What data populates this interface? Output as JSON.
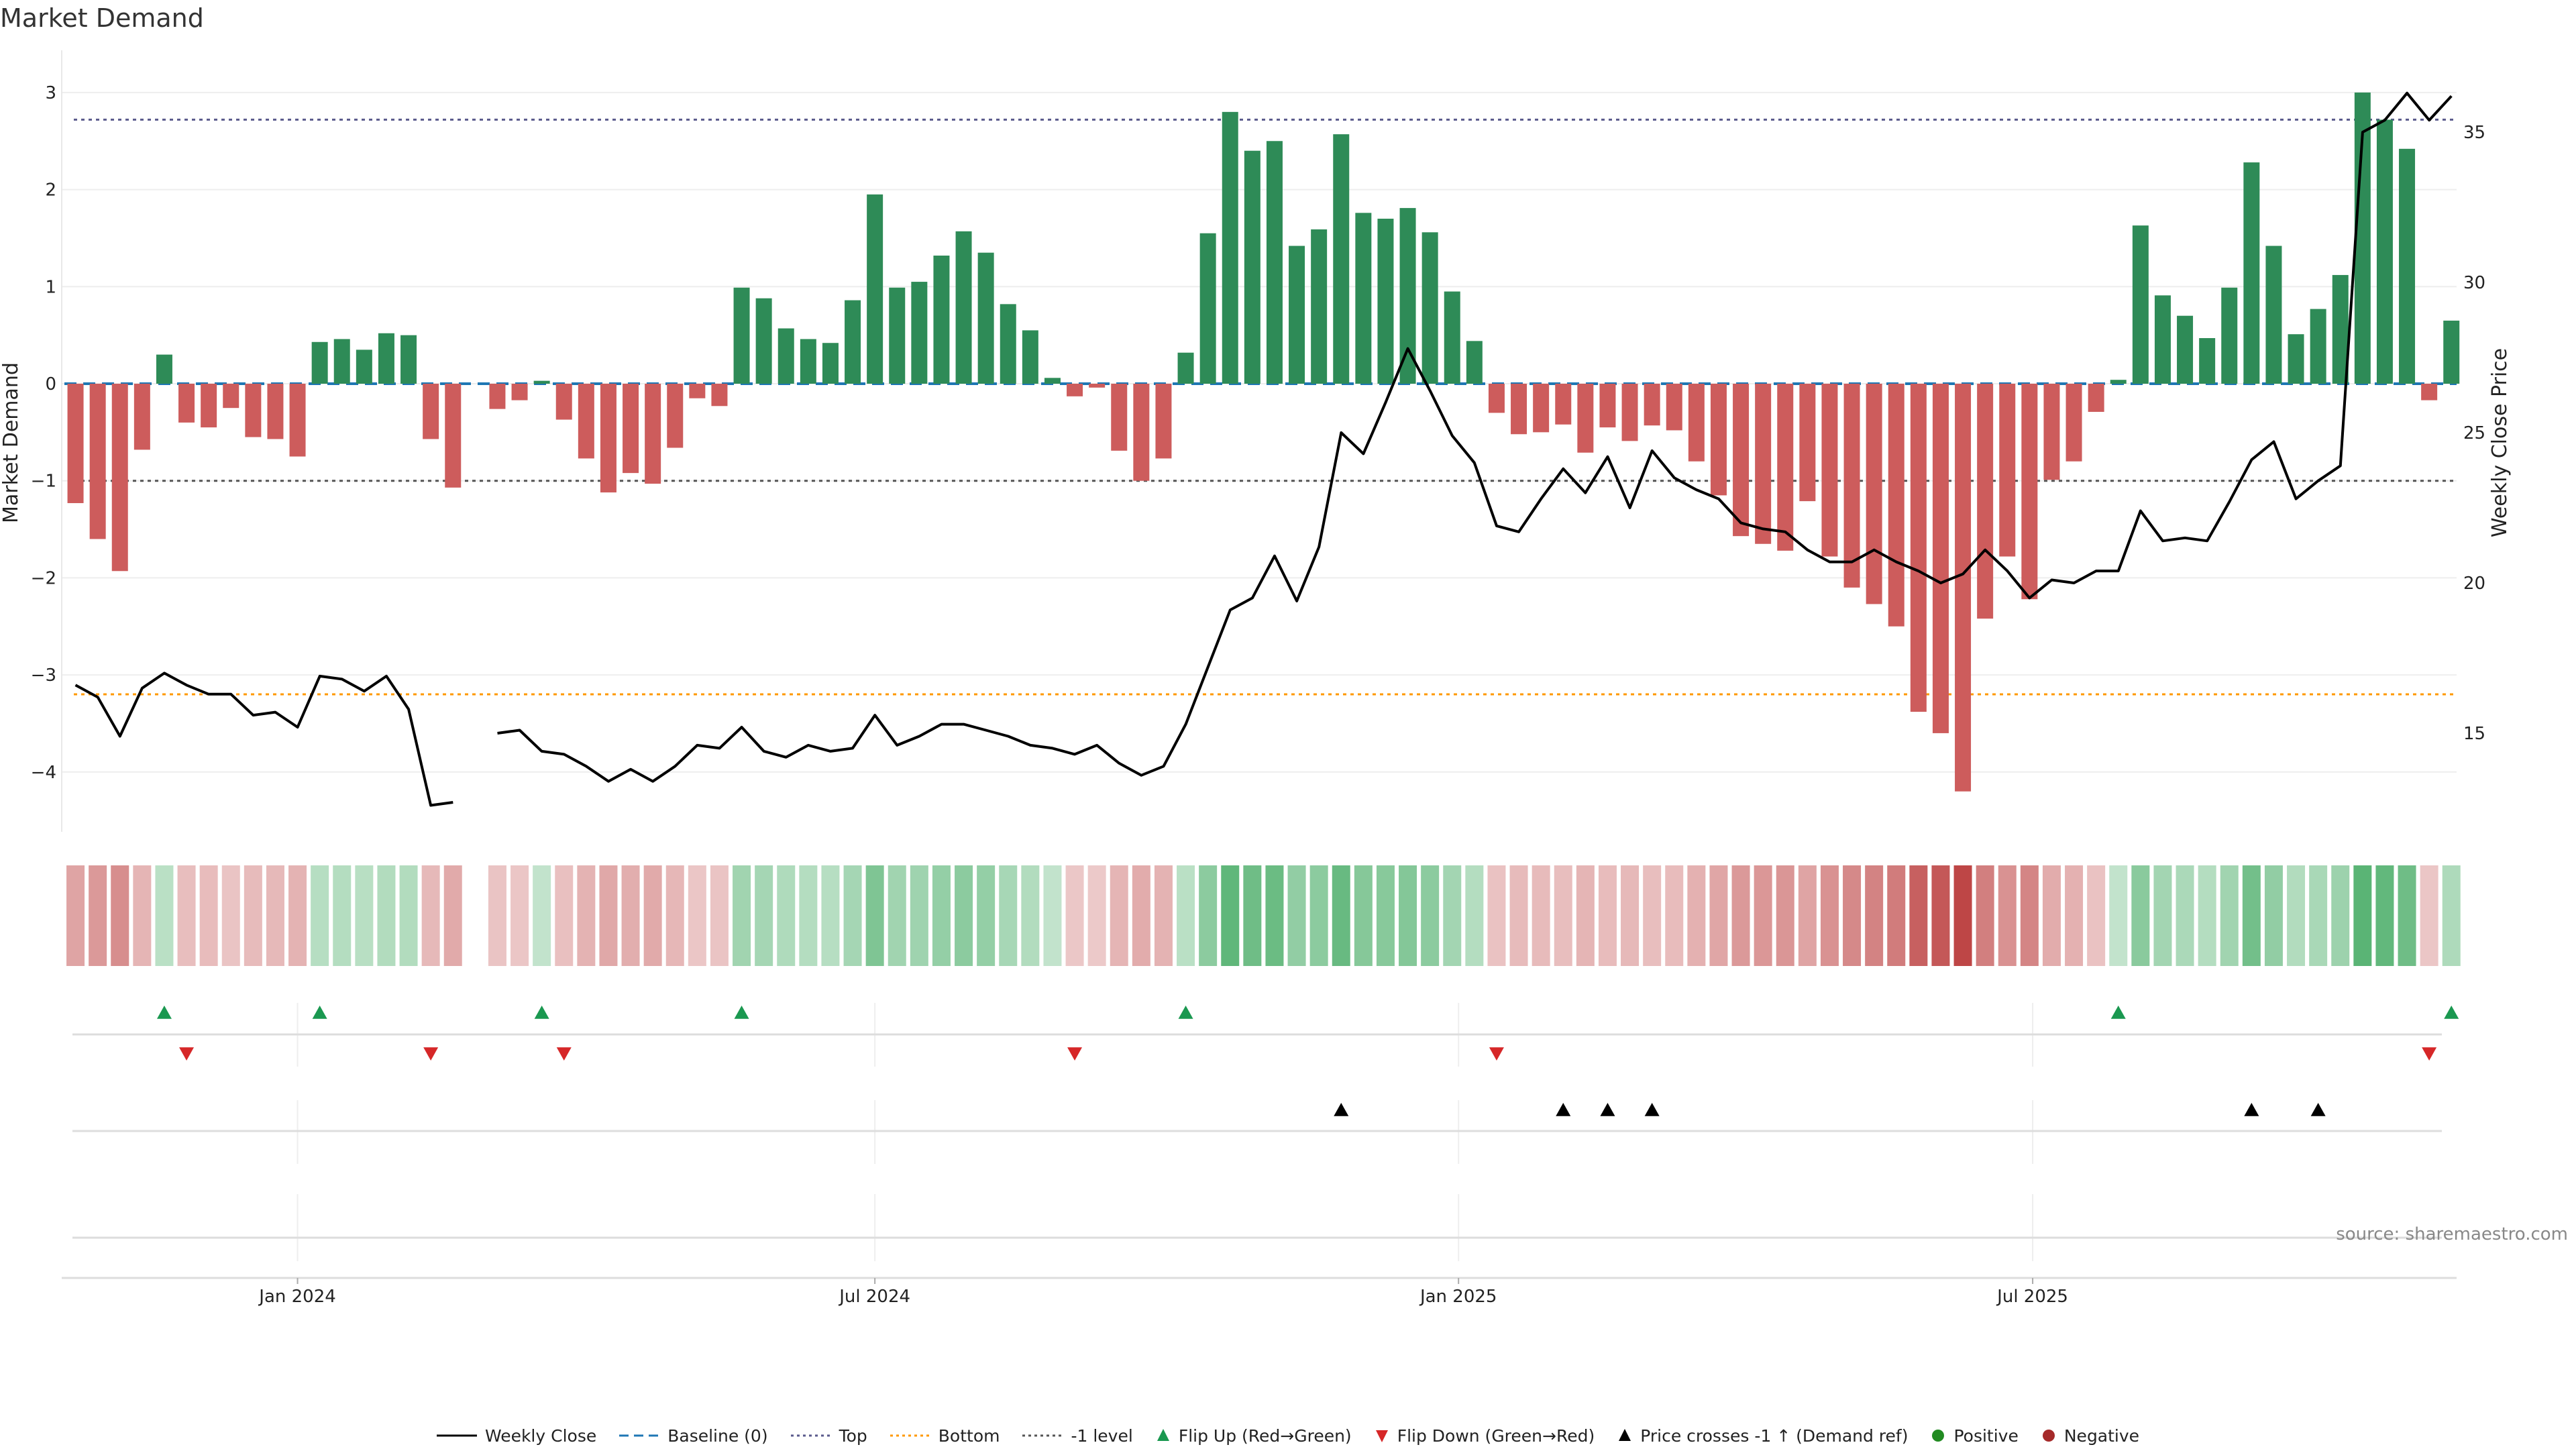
{
  "chart_data": {
    "type": "bar",
    "title": "Market Demand",
    "ylabel_left": "Market Demand",
    "ylabel_right": "Weekly Close Price",
    "source": "source: sharemaestro.com",
    "ylim_left": [
      -4.5,
      3.1
    ],
    "ylim_right": [
      12.6,
      36.8
    ],
    "yticks_left": [
      "3",
      "2",
      "1",
      "0",
      "−1",
      "−2",
      "−3",
      "−4"
    ],
    "yticks_left_values": [
      3,
      2,
      1,
      0,
      -1,
      -2,
      -3,
      -4
    ],
    "yticks_right": [
      "35",
      "30",
      "25",
      "20",
      "15"
    ],
    "yticks_right_values": [
      35,
      30,
      25,
      20,
      15
    ],
    "reference_lines": {
      "top": 2.72,
      "minus1": -1.0,
      "bottom": -3.2,
      "baseline": 0
    },
    "x_start": "2023-10-23",
    "x_step_days": 7,
    "x_tick_labels": [
      "Jan 2024",
      "Jul 2024",
      "Jan 2025",
      "Jul 2025"
    ],
    "x_tick_dates": [
      "2024-01-01",
      "2024-07-01",
      "2025-01-01",
      "2025-07-01"
    ],
    "demand": [
      -1.23,
      -1.6,
      -1.93,
      -0.68,
      0.3,
      -0.4,
      -0.45,
      -0.25,
      -0.55,
      -0.57,
      -0.75,
      0.43,
      0.46,
      0.35,
      0.52,
      0.5,
      -0.57,
      -1.07,
      null,
      -0.26,
      -0.17,
      0.03,
      -0.37,
      -0.77,
      -1.12,
      -0.92,
      -1.03,
      -0.66,
      -0.15,
      -0.23,
      0.99,
      0.88,
      0.57,
      0.46,
      0.42,
      0.86,
      1.95,
      0.99,
      1.05,
      1.32,
      1.57,
      1.35,
      0.82,
      0.55,
      0.06,
      -0.13,
      -0.04,
      -0.69,
      -1.0,
      -0.77,
      0.32,
      1.55,
      2.8,
      2.4,
      2.5,
      1.42,
      1.59,
      2.57,
      1.76,
      1.7,
      1.81,
      1.56,
      0.95,
      0.44,
      -0.3,
      -0.52,
      -0.5,
      -0.42,
      -0.71,
      -0.45,
      -0.59,
      -0.43,
      -0.48,
      -0.8,
      -1.15,
      -1.57,
      -1.65,
      -1.72,
      -1.21,
      -1.78,
      -2.1,
      -2.27,
      -2.5,
      -3.38,
      -3.6,
      -4.2,
      -2.42,
      -1.78,
      -2.22,
      -0.99,
      -0.8,
      -0.29,
      0.04,
      1.63,
      0.91,
      0.7,
      0.47,
      0.99,
      2.28,
      1.42,
      0.51,
      0.77,
      1.12,
      3.0,
      2.72,
      2.42,
      -0.17,
      0.65
    ],
    "weekly_close": [
      16.6,
      16.2,
      14.9,
      16.5,
      17.0,
      16.6,
      16.3,
      16.3,
      15.6,
      15.7,
      15.2,
      16.9,
      16.8,
      16.4,
      16.9,
      15.8,
      12.6,
      12.7,
      null,
      15.0,
      15.1,
      14.4,
      14.3,
      13.9,
      13.4,
      13.8,
      13.4,
      13.9,
      14.6,
      14.5,
      15.2,
      14.4,
      14.2,
      14.6,
      14.4,
      14.5,
      15.6,
      14.6,
      14.9,
      15.3,
      15.3,
      15.1,
      14.9,
      14.6,
      14.5,
      14.3,
      14.6,
      14.0,
      13.6,
      13.9,
      15.3,
      17.2,
      19.1,
      19.5,
      20.9,
      19.4,
      21.2,
      25.0,
      24.3,
      26.0,
      27.8,
      26.4,
      24.9,
      24.0,
      21.9,
      21.7,
      22.8,
      23.8,
      23.0,
      24.2,
      22.5,
      24.4,
      23.5,
      23.1,
      22.8,
      22.0,
      21.8,
      21.7,
      21.1,
      20.7,
      20.7,
      21.1,
      20.7,
      20.4,
      20.0,
      20.3,
      21.1,
      20.4,
      19.5,
      20.1,
      20.0,
      20.4,
      20.4,
      22.4,
      21.4,
      21.5,
      21.4,
      22.7,
      24.1,
      24.7,
      22.8,
      23.4,
      23.9,
      35.0,
      35.4,
      36.3,
      35.4,
      36.2
    ],
    "flip_up_weeks": [
      4,
      11,
      21,
      30,
      50,
      92,
      107
    ],
    "flip_down_weeks": [
      5,
      16,
      22,
      45,
      64,
      106
    ],
    "price_cross_weeks": [
      57,
      67,
      69,
      71,
      98,
      101
    ],
    "colors": {
      "positive": "#2e8b57",
      "negative": "#cd5c5c",
      "price_line": "#000000",
      "baseline": "#1f77b4",
      "top_line": "#5a5a8c",
      "bottom_line": "#ff9800",
      "minus1_line": "#555555",
      "flip_up": "#1a9850",
      "flip_down": "#d62728",
      "cross_marker": "#000000"
    },
    "legend": [
      {
        "label": "Weekly Close",
        "symbol": "line",
        "color": "#000000"
      },
      {
        "label": "Baseline (0)",
        "symbol": "dash",
        "color": "#1f77b4"
      },
      {
        "label": "Top",
        "symbol": "dot",
        "color": "#5a5a8c"
      },
      {
        "label": "Bottom",
        "symbol": "dot",
        "color": "#ff9800"
      },
      {
        "label": "-1 level",
        "symbol": "dot",
        "color": "#555555"
      },
      {
        "label": "Flip Up (Red→Green)",
        "symbol": "tri-up",
        "color": "#1a9850"
      },
      {
        "label": "Flip Down (Green→Red)",
        "symbol": "tri-down",
        "color": "#d62728"
      },
      {
        "label": "Price crosses -1 ↑ (Demand ref)",
        "symbol": "tri-up",
        "color": "#000000"
      },
      {
        "label": "Positive",
        "symbol": "circle",
        "color": "#228b22"
      },
      {
        "label": "Negative",
        "symbol": "circle",
        "color": "#a52a2a"
      }
    ]
  }
}
